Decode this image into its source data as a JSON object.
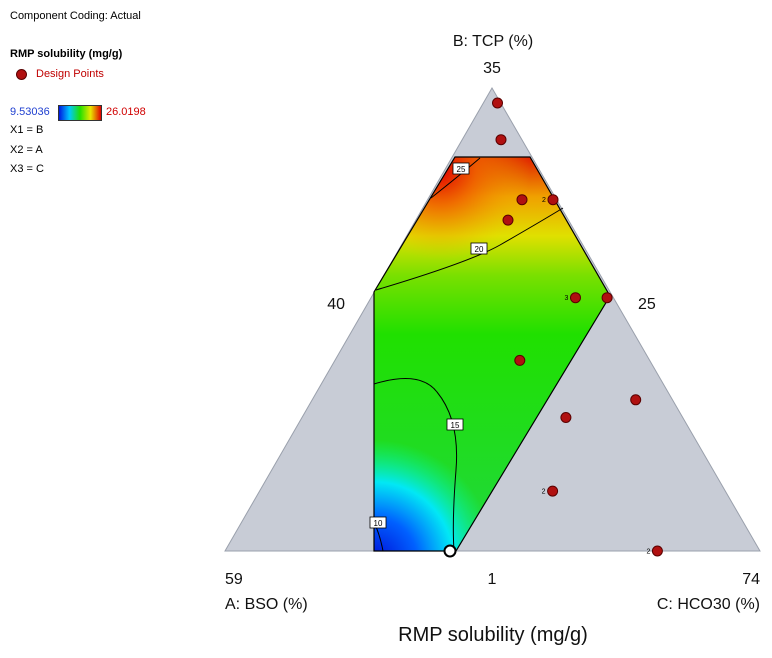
{
  "legend": {
    "coding": "Component Coding: Actual",
    "response": "RMP solubility (mg/g)",
    "design_points_label": "Design Points",
    "colorbar_min": "9.53036",
    "colorbar_max": "26.0198",
    "mappings": [
      "X1 = B",
      "X2 = A",
      "X3 = C"
    ]
  },
  "colors": {
    "triangle_fill": "#c8ccd6",
    "design_point": "#b01010",
    "colorbar_min_text": "#1f3fd0",
    "colorbar_max_text": "#d00000"
  },
  "chart_data": {
    "type": "ternary-contour",
    "title": "RMP solubility (mg/g)",
    "axis_labels": {
      "top": "B: TCP (%)",
      "left": "A: BSO (%)",
      "right": "C: HCO30 (%)"
    },
    "tick_labels": {
      "top": "35",
      "left_mid": "40",
      "right_mid": "25",
      "bottom_left": "59",
      "bottom_mid": "1",
      "bottom_right": "74"
    },
    "response_range": [
      9.53036,
      26.0198
    ],
    "contours": [
      {
        "level": 10,
        "label": "10"
      },
      {
        "level": 15,
        "label": "15"
      },
      {
        "level": 20,
        "label": "20"
      },
      {
        "level": 25,
        "label": "25"
      }
    ],
    "design_points": [
      {
        "B": 33.9,
        "A": 11.9,
        "C": 54.2,
        "replicates": 1
      },
      {
        "B": 31.2,
        "A": 24.1,
        "C": 44.7,
        "replicates": 1
      },
      {
        "B": 26.8,
        "A": 2.0,
        "C": 71.2,
        "replicates": 2
      },
      {
        "B": 26.8,
        "A": 19.6,
        "C": 53.6,
        "replicates": 1
      },
      {
        "B": 25.3,
        "A": 29.5,
        "C": 45.2,
        "replicates": 1
      },
      {
        "B": 19.6,
        "A": 12.5,
        "C": 67.9,
        "replicates": 3
      },
      {
        "B": 19.6,
        "A": 2.0,
        "C": 78.4,
        "replicates": 1
      },
      {
        "B": 15.0,
        "A": 35.0,
        "C": 50.0,
        "replicates": 1
      },
      {
        "B": 12.1,
        "A": 8.9,
        "C": 79.0,
        "replicates": 1
      },
      {
        "B": 10.8,
        "A": 27.3,
        "C": 61.9,
        "replicates": 1
      },
      {
        "B": 5.4,
        "A": 35.0,
        "C": 59.6,
        "replicates": 2
      },
      {
        "B": 1.0,
        "A": 18.9,
        "C": 80.1,
        "replicates": 2
      }
    ]
  }
}
